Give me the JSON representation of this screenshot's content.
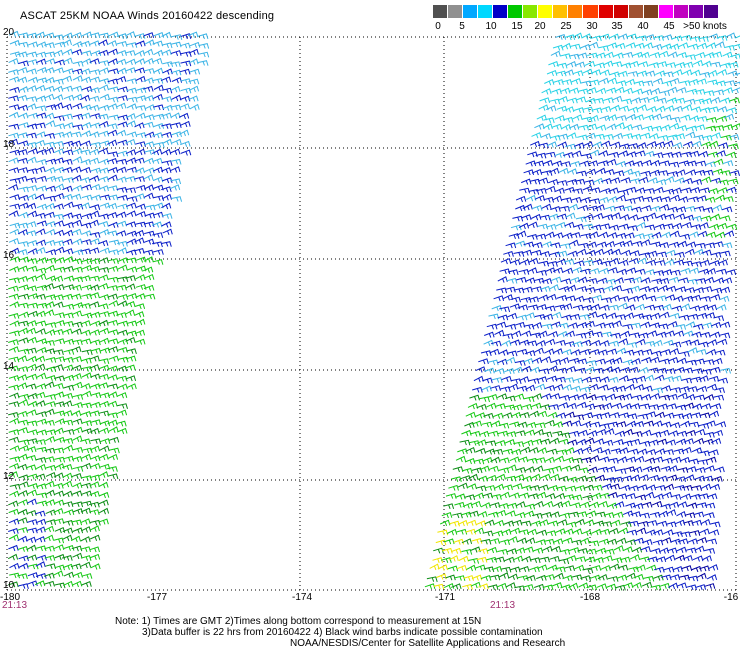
{
  "title": "ASCAT 25KM NOAA Winds 20160422 descending",
  "colorbar": {
    "ticks": [
      "0",
      "5",
      "10",
      "15",
      "20",
      "25",
      "30",
      "35",
      "40",
      "45",
      ">50 knots"
    ],
    "colors": [
      "#505050",
      "#909090",
      "#00a8ff",
      "#00d8ff",
      "#0000c8",
      "#00c800",
      "#88e800",
      "#ffff00",
      "#ffc000",
      "#ff8000",
      "#ff4000",
      "#e00000",
      "#d00000",
      "#a05030",
      "#804020",
      "#ff00ff",
      "#c000c0",
      "#8000b0",
      "#500090"
    ]
  },
  "axes": {
    "lat_labels": [
      "20",
      "18",
      "16",
      "14",
      "12",
      "10"
    ],
    "lon_labels": [
      "-180",
      "-177",
      "-174",
      "-171",
      "-168",
      "-16"
    ]
  },
  "time_labels": [
    "21:13",
    "21:13"
  ],
  "notes": [
    "Note: 1) Times are GMT 2)Times along bottom correspond to measurement at 15N",
    "3)Data buffer is 22 hrs from 20160422 4) Black wind barbs indicate possible contamination",
    "NOAA/NESDIS/Center for Satellite Applications and Research"
  ],
  "wind_legend": {
    "contamination_color": "black",
    "speed_colors": {
      "light_blue": "#3cb4e6",
      "cyan": "#28d2e6",
      "blue": "#0a1ec8",
      "dark_blue": "#0000a0",
      "green": "#14c814",
      "dark_green": "#0a8c14",
      "yellow": "#f0e600"
    }
  }
}
